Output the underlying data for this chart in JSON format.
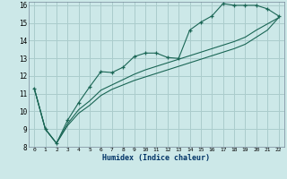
{
  "xlabel": "Humidex (Indice chaleur)",
  "bg_color": "#cce8e8",
  "grid_color": "#aacccc",
  "line_color": "#1a6655",
  "xlim": [
    -0.5,
    22.5
  ],
  "ylim": [
    8,
    16.2
  ],
  "yticks": [
    8,
    9,
    10,
    11,
    12,
    13,
    14,
    15,
    16
  ],
  "xticks": [
    0,
    1,
    2,
    3,
    4,
    5,
    6,
    7,
    8,
    9,
    10,
    11,
    12,
    13,
    14,
    15,
    16,
    17,
    18,
    19,
    20,
    21,
    22
  ],
  "line1_x": [
    0,
    1,
    2,
    3,
    4,
    5,
    6,
    7,
    8,
    9,
    10,
    11,
    12,
    13,
    14,
    15,
    16,
    17,
    18,
    19,
    20,
    21,
    22
  ],
  "line1_y": [
    11.3,
    9.0,
    8.2,
    9.5,
    10.5,
    11.4,
    12.25,
    12.2,
    12.5,
    13.1,
    13.3,
    13.3,
    13.05,
    13.0,
    14.6,
    15.05,
    15.4,
    16.1,
    16.0,
    16.0,
    16.0,
    15.8,
    15.4
  ],
  "line2_x": [
    0,
    1,
    2,
    3,
    4,
    5,
    6,
    7,
    8,
    9,
    10,
    11,
    12,
    13,
    14,
    15,
    16,
    17,
    18,
    19,
    20,
    21,
    22
  ],
  "line2_y": [
    11.3,
    9.0,
    8.2,
    9.3,
    10.1,
    10.6,
    11.2,
    11.5,
    11.8,
    12.1,
    12.35,
    12.55,
    12.75,
    12.95,
    13.15,
    13.35,
    13.55,
    13.75,
    13.95,
    14.2,
    14.6,
    14.95,
    15.3
  ],
  "line3_x": [
    0,
    1,
    2,
    3,
    4,
    5,
    6,
    7,
    8,
    9,
    10,
    11,
    12,
    13,
    14,
    15,
    16,
    17,
    18,
    19,
    20,
    21,
    22
  ],
  "line3_y": [
    11.3,
    9.0,
    8.2,
    9.2,
    9.9,
    10.35,
    10.9,
    11.25,
    11.5,
    11.75,
    11.95,
    12.15,
    12.35,
    12.55,
    12.75,
    12.95,
    13.15,
    13.35,
    13.55,
    13.8,
    14.2,
    14.6,
    15.3
  ]
}
